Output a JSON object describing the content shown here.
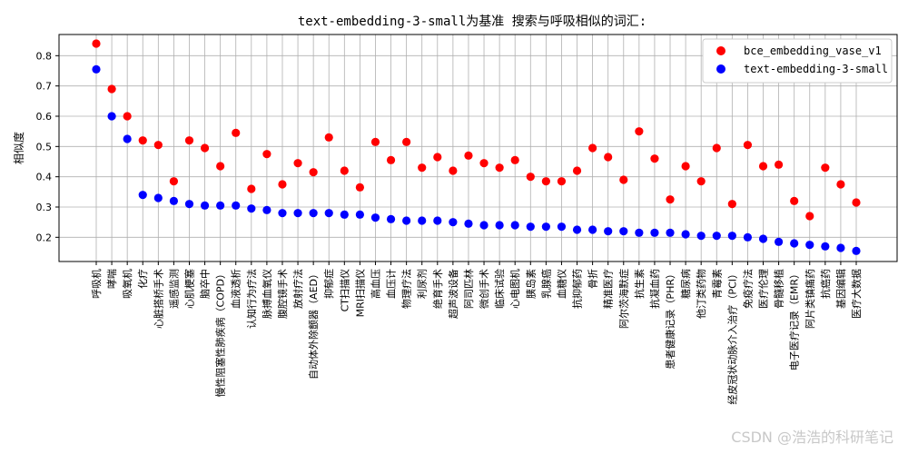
{
  "chart_data": {
    "type": "scatter",
    "title": "text-embedding-3-small为基准 搜索与呼吸相似的词汇:",
    "xlabel": "",
    "ylabel": "相似度",
    "yticks": [
      0.2,
      0.3,
      0.4,
      0.5,
      0.6,
      0.7,
      0.8
    ],
    "ylim": [
      0.12,
      0.87
    ],
    "grid": true,
    "legend_position": "top-right",
    "categories": [
      "呼吸机",
      "哮喘",
      "吸氧机",
      "化疗",
      "心脏搭桥手术",
      "遥感监测",
      "心肌梗塞",
      "脑卒中",
      "慢性阻塞性肺疾病（COPD）",
      "血液透析",
      "认知行为疗法",
      "脉搏血氧仪",
      "腹腔镜手术",
      "放射疗法",
      "自动体外除颤器（AED）",
      "抑郁症",
      "CT扫描仪",
      "MRI扫描仪",
      "高血压",
      "血压计",
      "物理疗法",
      "利尿剂",
      "绝育手术",
      "超声波设备",
      "阿司匹林",
      "微创手术",
      "临床试验",
      "心电图机",
      "胰岛素",
      "乳腺癌",
      "血糖仪",
      "抗抑郁药",
      "骨折",
      "精准医疗",
      "阿尔茨海默症",
      "抗生素",
      "抗凝血药",
      "患者健康记录（PHR）",
      "糖尿病",
      "他汀类药物",
      "青霉素",
      "经皮冠状动脉介入治疗（PCI）",
      "免疫疗法",
      "医疗伦理",
      "骨髓移植",
      "电子医疗记录（EMR）",
      "阿片类镇痛药",
      "抗癌药",
      "基因编辑",
      "医疗大数据"
    ],
    "series": [
      {
        "name": "bce_embedding_vase_v1",
        "color": "#ff0000",
        "values": [
          0.84,
          0.69,
          0.6,
          0.52,
          0.505,
          0.385,
          0.52,
          0.495,
          0.435,
          0.545,
          0.36,
          0.475,
          0.375,
          0.445,
          0.415,
          0.53,
          0.42,
          0.365,
          0.515,
          0.455,
          0.515,
          0.43,
          0.465,
          0.42,
          0.47,
          0.445,
          0.43,
          0.455,
          0.4,
          0.385,
          0.385,
          0.42,
          0.495,
          0.465,
          0.39,
          0.55,
          0.46,
          0.325,
          0.435,
          0.385,
          0.495,
          0.31,
          0.505,
          0.435,
          0.44,
          0.32,
          0.27,
          0.43,
          0.375,
          0.315
        ]
      },
      {
        "name": "text-embedding-3-small",
        "color": "#0000ff",
        "values": [
          0.755,
          0.6,
          0.525,
          0.34,
          0.33,
          0.32,
          0.31,
          0.305,
          0.305,
          0.305,
          0.295,
          0.29,
          0.28,
          0.28,
          0.28,
          0.28,
          0.275,
          0.275,
          0.265,
          0.26,
          0.255,
          0.255,
          0.255,
          0.25,
          0.245,
          0.24,
          0.24,
          0.24,
          0.235,
          0.235,
          0.235,
          0.225,
          0.225,
          0.22,
          0.22,
          0.215,
          0.215,
          0.215,
          0.21,
          0.205,
          0.205,
          0.205,
          0.2,
          0.195,
          0.185,
          0.18,
          0.175,
          0.17,
          0.165,
          0.155
        ]
      }
    ]
  },
  "watermark": "CSDN @浩浩的科研笔记"
}
